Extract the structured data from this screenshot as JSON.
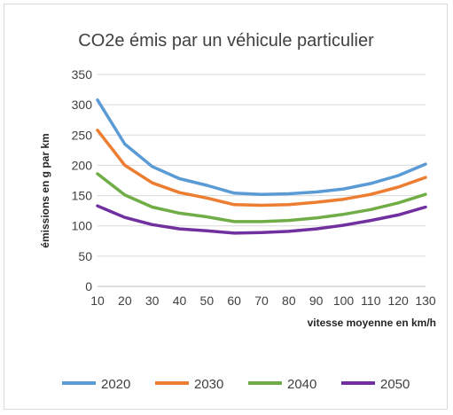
{
  "chart_data": {
    "type": "line",
    "title": "CO2e émis par un véhicule particulier",
    "xlabel": "vitesse moyenne en km/h",
    "ylabel": "émissions en g par km",
    "x": [
      10,
      20,
      30,
      40,
      50,
      60,
      70,
      80,
      90,
      100,
      110,
      120,
      130
    ],
    "x_ticks": [
      "10",
      "20",
      "30",
      "40",
      "50",
      "60",
      "70",
      "80",
      "90",
      "100",
      "110",
      "120",
      "130"
    ],
    "ylim": [
      0,
      350
    ],
    "y_ticks": [
      "0",
      "50",
      "100",
      "150",
      "200",
      "250",
      "300",
      "350"
    ],
    "grid": "horizontal",
    "legend_position": "bottom",
    "series": [
      {
        "name": "2020",
        "color": "#5b9bd5",
        "values": [
          308,
          235,
          198,
          178,
          167,
          154,
          152,
          153,
          156,
          161,
          170,
          183,
          202
        ]
      },
      {
        "name": "2030",
        "color": "#ed7d31",
        "values": [
          258,
          200,
          171,
          155,
          146,
          135,
          134,
          135,
          139,
          144,
          152,
          164,
          180
        ]
      },
      {
        "name": "2040",
        "color": "#70ad47",
        "values": [
          186,
          151,
          131,
          121,
          115,
          107,
          107,
          109,
          113,
          119,
          127,
          138,
          152
        ]
      },
      {
        "name": "2050",
        "color": "#7030a0",
        "values": [
          133,
          114,
          102,
          95,
          92,
          88,
          89,
          91,
          95,
          101,
          109,
          118,
          131
        ]
      }
    ]
  }
}
